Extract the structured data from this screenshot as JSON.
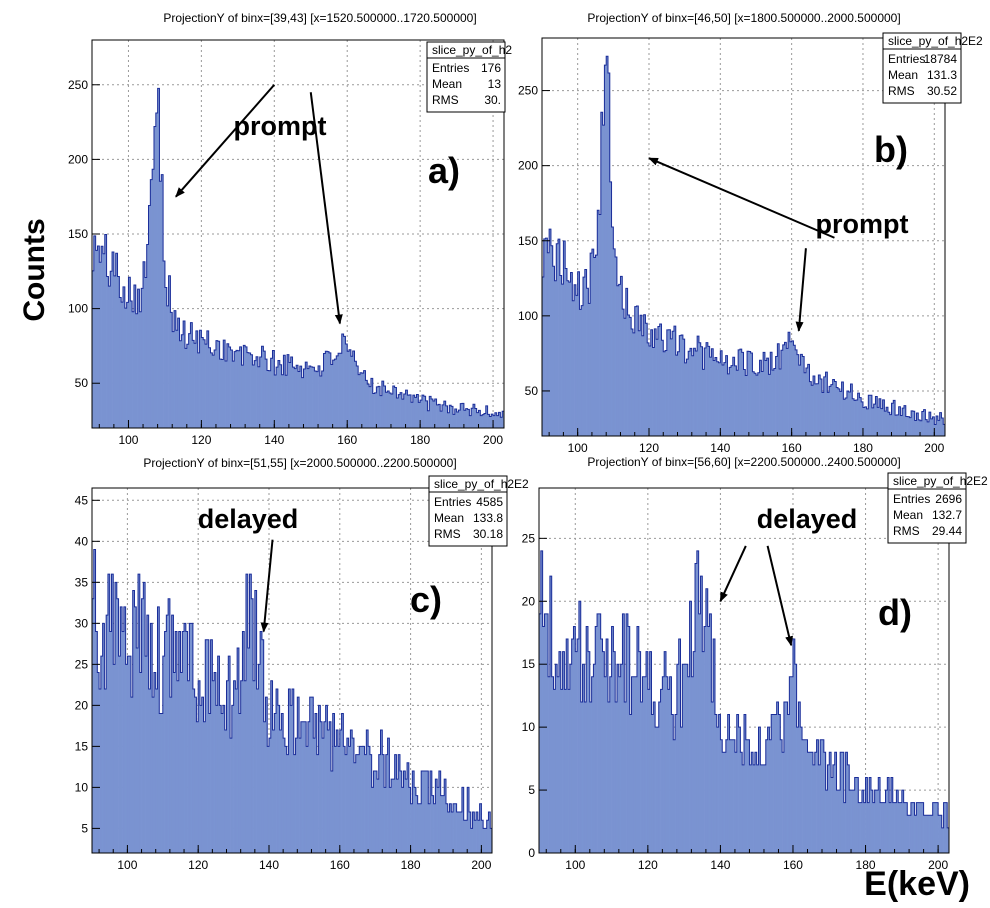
{
  "figure": {
    "ylabel": "Counts",
    "xlabel": "E(keV)"
  },
  "chart_data": [
    {
      "type": "bar",
      "panel": "a)",
      "title": "ProjectionY of binx=[39,43] [x=1520.500000..1720.500000]",
      "stats": {
        "name": "slice_py_of_h2",
        "entries_label": "Entries",
        "entries": "176",
        "mean_label": "Mean",
        "mean": "13",
        "rms_label": "RMS",
        "rms": "30."
      },
      "xlim": [
        90,
        203
      ],
      "ylim": [
        20,
        280
      ],
      "xticks": [
        100,
        120,
        140,
        160,
        180,
        200
      ],
      "yticks": [
        50,
        100,
        150,
        200,
        250
      ],
      "annotations": [
        {
          "text": "prompt"
        }
      ],
      "points": [
        [
          90,
          140
        ],
        [
          95,
          130
        ],
        [
          100,
          113
        ],
        [
          103,
          110
        ],
        [
          105,
          125
        ],
        [
          106,
          160
        ],
        [
          107,
          240
        ],
        [
          108,
          262
        ],
        [
          109,
          200
        ],
        [
          110,
          130
        ],
        [
          112,
          95
        ],
        [
          115,
          82
        ],
        [
          118,
          80
        ],
        [
          120,
          78
        ],
        [
          125,
          75
        ],
        [
          130,
          68
        ],
        [
          135,
          68
        ],
        [
          140,
          63
        ],
        [
          145,
          62
        ],
        [
          150,
          60
        ],
        [
          155,
          65
        ],
        [
          158,
          75
        ],
        [
          160,
          70
        ],
        [
          163,
          58
        ],
        [
          165,
          52
        ],
        [
          170,
          47
        ],
        [
          175,
          45
        ],
        [
          180,
          38
        ],
        [
          185,
          35
        ],
        [
          190,
          33
        ],
        [
          195,
          32
        ],
        [
          200,
          30
        ],
        [
          203,
          30
        ]
      ],
      "arrows": [
        {
          "label": [
            140,
            250
          ],
          "tip": [
            113,
            175
          ]
        },
        {
          "label": [
            150,
            245
          ],
          "tip": [
            158,
            90
          ]
        }
      ]
    },
    {
      "type": "bar",
      "panel": "b)",
      "title": "ProjectionY of binx=[46,50] [x=1800.500000..2000.500000]",
      "stats": {
        "name": "slice_py_of_h2E2",
        "entries_label": "Entries",
        "entries": "18784",
        "mean_label": "Mean",
        "mean": "131.3",
        "rms_label": "RMS",
        "rms": "30.52"
      },
      "xlim": [
        90,
        203
      ],
      "ylim": [
        20,
        285
      ],
      "xticks": [
        100,
        120,
        140,
        160,
        180,
        200
      ],
      "yticks": [
        50,
        100,
        150,
        200,
        250
      ],
      "annotations": [
        {
          "text": "prompt"
        }
      ],
      "points": [
        [
          90,
          140
        ],
        [
          95,
          138
        ],
        [
          100,
          120
        ],
        [
          103,
          118
        ],
        [
          105,
          135
        ],
        [
          106,
          170
        ],
        [
          107,
          230
        ],
        [
          108,
          270
        ],
        [
          109,
          220
        ],
        [
          110,
          150
        ],
        [
          112,
          115
        ],
        [
          115,
          100
        ],
        [
          118,
          95
        ],
        [
          120,
          90
        ],
        [
          125,
          85
        ],
        [
          130,
          80
        ],
        [
          135,
          75
        ],
        [
          140,
          70
        ],
        [
          145,
          68
        ],
        [
          150,
          70
        ],
        [
          155,
          68
        ],
        [
          158,
          78
        ],
        [
          160,
          88
        ],
        [
          162,
          70
        ],
        [
          165,
          62
        ],
        [
          170,
          55
        ],
        [
          175,
          50
        ],
        [
          180,
          45
        ],
        [
          185,
          42
        ],
        [
          190,
          38
        ],
        [
          195,
          35
        ],
        [
          200,
          32
        ],
        [
          203,
          32
        ]
      ],
      "arrows": [
        {
          "label": [
            172,
            152
          ],
          "tip": [
            120,
            205
          ]
        },
        {
          "label": [
            164,
            145
          ],
          "tip": [
            162,
            90
          ]
        }
      ]
    },
    {
      "type": "bar",
      "panel": "c)",
      "title": "ProjectionY of binx=[51,55] [x=2000.500000..2200.500000]",
      "stats": {
        "name": "slice_py_of_h2E2",
        "entries_label": "Entries",
        "entries": "4585",
        "mean_label": "Mean",
        "mean": "133.8",
        "rms_label": "RMS",
        "rms": "30.18"
      },
      "xlim": [
        90,
        203
      ],
      "ylim": [
        2,
        46.5
      ],
      "xticks": [
        100,
        120,
        140,
        160,
        180,
        200
      ],
      "yticks": [
        5,
        10,
        15,
        20,
        25,
        30,
        35,
        40,
        45
      ],
      "annotations": [
        {
          "text": "delayed"
        }
      ],
      "points": [
        [
          90,
          31
        ],
        [
          95,
          30
        ],
        [
          100,
          28
        ],
        [
          103,
          29
        ],
        [
          105,
          30
        ],
        [
          108,
          27
        ],
        [
          110,
          26
        ],
        [
          115,
          27
        ],
        [
          120,
          24
        ],
        [
          125,
          23
        ],
        [
          130,
          22
        ],
        [
          133,
          28
        ],
        [
          135,
          30
        ],
        [
          137,
          25
        ],
        [
          140,
          19
        ],
        [
          145,
          18
        ],
        [
          150,
          18
        ],
        [
          155,
          17
        ],
        [
          160,
          16
        ],
        [
          165,
          15
        ],
        [
          170,
          14
        ],
        [
          175,
          12
        ],
        [
          180,
          11
        ],
        [
          185,
          10
        ],
        [
          190,
          9
        ],
        [
          195,
          8
        ],
        [
          200,
          7
        ],
        [
          203,
          6
        ]
      ],
      "arrows": [
        {
          "label": [
            141,
            40.2
          ],
          "tip": [
            138.5,
            29
          ]
        }
      ]
    },
    {
      "type": "bar",
      "panel": "d)",
      "title": "ProjectionY of binx=[56,60] [x=2200.500000..2400.500000]",
      "stats": {
        "name": "slice_py_of_h2E2",
        "entries_label": "Entries",
        "entries": "2696",
        "mean_label": "Mean",
        "mean": "132.7",
        "rms_label": "RMS",
        "rms": "29.44"
      },
      "xlim": [
        90,
        203
      ],
      "ylim": [
        0,
        29
      ],
      "xticks": [
        100,
        120,
        140,
        160,
        180,
        200
      ],
      "yticks": [
        0,
        5,
        10,
        15,
        20,
        25
      ],
      "annotations": [
        {
          "text": "delayed"
        }
      ],
      "points": [
        [
          90,
          19
        ],
        [
          95,
          17
        ],
        [
          100,
          16
        ],
        [
          105,
          16
        ],
        [
          110,
          15
        ],
        [
          115,
          15
        ],
        [
          120,
          14
        ],
        [
          125,
          13
        ],
        [
          130,
          13
        ],
        [
          133,
          19
        ],
        [
          135,
          22
        ],
        [
          137,
          16
        ],
        [
          140,
          11
        ],
        [
          145,
          9
        ],
        [
          150,
          8
        ],
        [
          155,
          9
        ],
        [
          158,
          11
        ],
        [
          160,
          14
        ],
        [
          162,
          10
        ],
        [
          165,
          8
        ],
        [
          170,
          7
        ],
        [
          175,
          6
        ],
        [
          180,
          5
        ],
        [
          185,
          5
        ],
        [
          190,
          4
        ],
        [
          195,
          4
        ],
        [
          200,
          3
        ],
        [
          203,
          3
        ]
      ],
      "arrows": [
        {
          "label": [
            147,
            24.4
          ],
          "tip": [
            140,
            20
          ]
        },
        {
          "label": [
            153,
            24.4
          ],
          "tip": [
            159.5,
            16.5
          ]
        }
      ]
    }
  ]
}
